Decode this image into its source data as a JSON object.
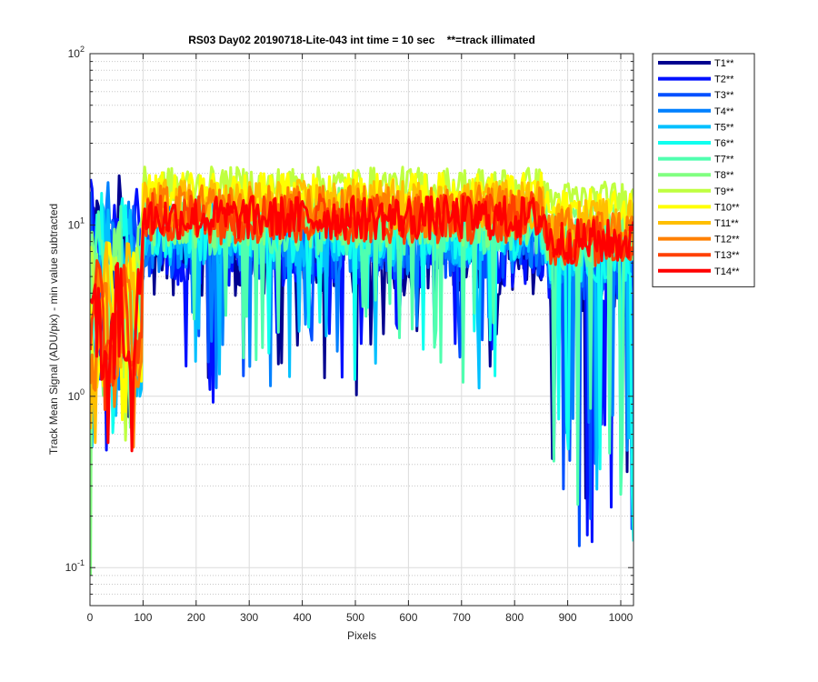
{
  "chart_data": {
    "type": "line",
    "title": "RS03 Day02 20190718-Lite-043 int time = 10 sec    **=track illimated",
    "xlabel": "Pixels",
    "ylabel": "Track Mean Signal (ADU/pix) - min value subtracted",
    "xlim": [
      0,
      1024
    ],
    "ylim": [
      0.06,
      100
    ],
    "yscale": "log",
    "grid": true,
    "legend_position": "outside-top-right",
    "x_ticks": [
      0,
      100,
      200,
      300,
      400,
      500,
      600,
      700,
      800,
      900,
      1000
    ],
    "x_tick_labels": [
      "0",
      "100",
      "200",
      "300",
      "400",
      "500",
      "600",
      "700",
      "800",
      "900",
      "1000"
    ],
    "y_ticks": [
      0.1,
      1,
      10,
      100
    ],
    "y_tick_labels": [
      {
        "base": "10",
        "exp": "-1"
      },
      {
        "base": "10",
        "exp": "0"
      },
      {
        "base": "10",
        "exp": "1"
      },
      {
        "base": "10",
        "exp": "2"
      }
    ],
    "series": [
      {
        "name": "T1**",
        "color": "#00008f",
        "level_left": 11,
        "level_right": 5,
        "plateau": 7,
        "variability": 0.6,
        "deep_dips": true
      },
      {
        "name": "T2**",
        "color": "#0010ff",
        "level_left": 12,
        "level_right": 6,
        "plateau": 7.5,
        "variability": 0.55,
        "deep_dips": true
      },
      {
        "name": "T3**",
        "color": "#0050ff",
        "level_left": 12,
        "level_right": 6,
        "plateau": 8,
        "variability": 0.5,
        "deep_dips": true
      },
      {
        "name": "T4**",
        "color": "#0080ff",
        "level_left": 12,
        "level_right": 7,
        "plateau": 8.5,
        "variability": 0.5,
        "deep_dips": true
      },
      {
        "name": "T5**",
        "color": "#00c0ff",
        "level_left": 11,
        "level_right": 7,
        "plateau": 9,
        "variability": 0.45,
        "deep_dips": true
      },
      {
        "name": "T6**",
        "color": "#10ffef",
        "level_left": 10,
        "level_right": 7,
        "plateau": 9.5,
        "variability": 0.45,
        "deep_dips": true
      },
      {
        "name": "T7**",
        "color": "#50ffaf",
        "level_left": 9,
        "level_right": 8,
        "plateau": 10,
        "variability": 0.4,
        "deep_dips": true
      },
      {
        "name": "T8**",
        "color": "#80ff80",
        "level_left": 8,
        "level_right": 9,
        "plateau": 11,
        "variability": 0.4,
        "deep_dips": false
      },
      {
        "name": "T9**",
        "color": "#bfff40",
        "level_left": 7,
        "level_right": 14,
        "plateau": 17,
        "variability": 0.25,
        "deep_dips": false
      },
      {
        "name": "T10**",
        "color": "#ffff00",
        "level_left": 6,
        "level_right": 12,
        "plateau": 15,
        "variability": 0.3,
        "deep_dips": false
      },
      {
        "name": "T11**",
        "color": "#ffbf00",
        "level_left": 6,
        "level_right": 10,
        "plateau": 13,
        "variability": 0.35,
        "deep_dips": false
      },
      {
        "name": "T12**",
        "color": "#ff8000",
        "level_left": 5.5,
        "level_right": 9,
        "plateau": 12,
        "variability": 0.35,
        "deep_dips": false
      },
      {
        "name": "T13**",
        "color": "#ff4000",
        "level_left": 5,
        "level_right": 8,
        "plateau": 11,
        "variability": 0.35,
        "deep_dips": false
      },
      {
        "name": "T14**",
        "color": "#ff0000",
        "level_left": 5,
        "level_right": 8,
        "plateau": 11,
        "variability": 0.3,
        "deep_dips": false
      }
    ]
  }
}
